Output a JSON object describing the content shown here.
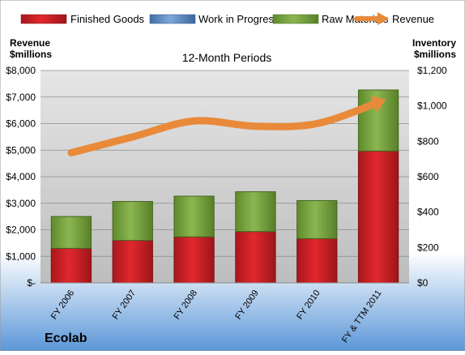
{
  "colors": {
    "finished_goods": "#c81e24",
    "work_in_progress": "#4f81bd",
    "raw_materials": "#77a33a",
    "revenue": "#e98a3a",
    "plot_bg": "#c9c9c9",
    "bg_top": "#ffffff",
    "bg_bottom": "#5b97d8"
  },
  "chart_data": {
    "type": "bar",
    "stacked": true,
    "title": "12-Month Periods",
    "company": "Ecolab",
    "categories": [
      "FY 2006",
      "FY 2007",
      "FY 2008",
      "FY 2009",
      "FY 2010",
      "FY & TTM 2011"
    ],
    "left_axis": {
      "label_line1": "Revenue",
      "label_line2": "$millions",
      "ylim": [
        0,
        8000
      ],
      "ticks": [
        {
          "value": 0,
          "label": "$-"
        },
        {
          "value": 1000,
          "label": "$1,000"
        },
        {
          "value": 2000,
          "label": "$2,000"
        },
        {
          "value": 3000,
          "label": "$3,000"
        },
        {
          "value": 4000,
          "label": "$4,000"
        },
        {
          "value": 5000,
          "label": "$5,000"
        },
        {
          "value": 6000,
          "label": "$6,000"
        },
        {
          "value": 7000,
          "label": "$7,000"
        },
        {
          "value": 8000,
          "label": "$8,000"
        }
      ]
    },
    "right_axis": {
      "label_line1": "Inventory",
      "label_line2": "$millions",
      "ylim": [
        0,
        1200
      ],
      "ticks": [
        {
          "value": 0,
          "label": "$0"
        },
        {
          "value": 200,
          "label": "$200"
        },
        {
          "value": 400,
          "label": "$400"
        },
        {
          "value": 600,
          "label": "$600"
        },
        {
          "value": 800,
          "label": "$800"
        },
        {
          "value": 1000,
          "label": "$1,000"
        },
        {
          "value": 1200,
          "label": "$1,200"
        }
      ]
    },
    "series": [
      {
        "name": "Finished Goods",
        "axis": "right",
        "kind": "bar",
        "values": [
          195,
          240,
          260,
          290,
          250,
          745
        ]
      },
      {
        "name": "Work in Progress",
        "axis": "right",
        "kind": "bar",
        "values": [
          0,
          0,
          0,
          0,
          0,
          0
        ]
      },
      {
        "name": "Raw Materials",
        "axis": "right",
        "kind": "bar",
        "values": [
          180,
          220,
          230,
          225,
          215,
          345
        ]
      },
      {
        "name": "Revenue",
        "axis": "left",
        "kind": "line",
        "values": [
          4900,
          5500,
          6100,
          5900,
          6000,
          6800
        ]
      }
    ],
    "legend_position": "top",
    "grid": true
  }
}
